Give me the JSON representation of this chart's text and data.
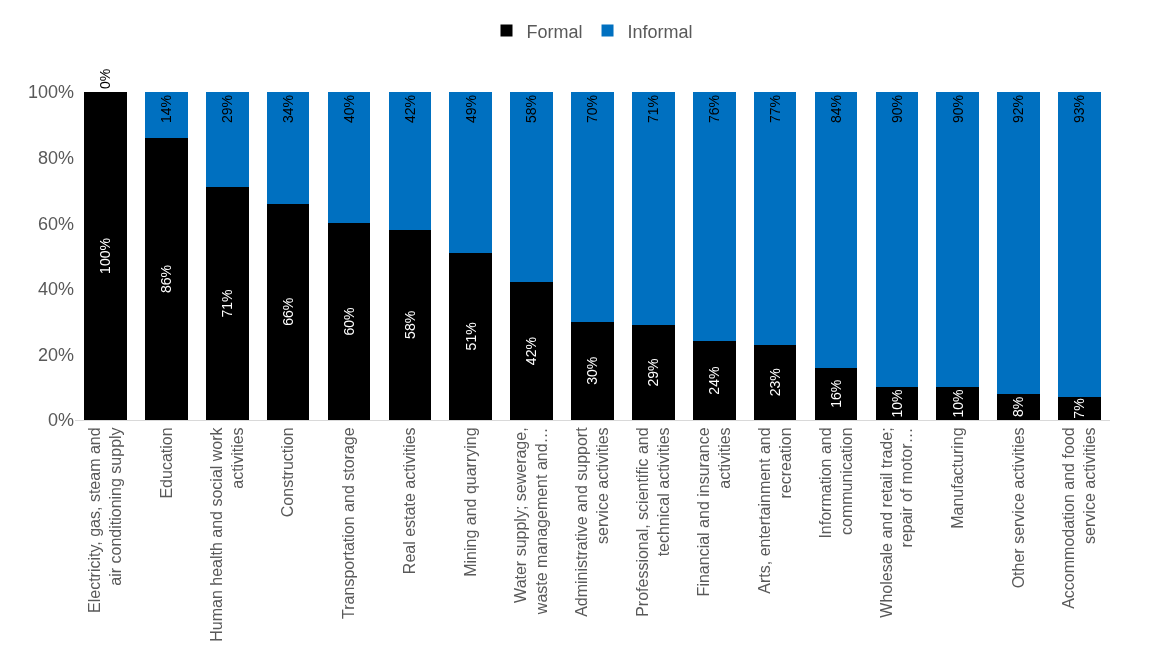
{
  "chart_data": {
    "type": "bar",
    "stacked": true,
    "legend": "top",
    "categories": [
      "Electricity, gas, steam and air conditioning supply",
      "Education",
      "Human health and social work activities",
      "Construction",
      "Transportation and storage",
      "Real estate activities",
      "Mining and quarrying",
      "Water supply; sewerage, waste management and…",
      "Administrative and support service activities",
      "Professional, scientific and technical activities",
      "Financial and insurance activities",
      "Arts, entertainment and recreation",
      "Information and communication",
      "Wholesale and retail trade; repair of motor…",
      "Manufacturing",
      "Other service activities",
      "Accommodation and food service activities"
    ],
    "series": [
      {
        "name": "Formal",
        "color": "#000000",
        "values": [
          100,
          86,
          71,
          66,
          60,
          58,
          51,
          42,
          30,
          29,
          24,
          23,
          16,
          10,
          10,
          8,
          7
        ],
        "value_labels": [
          "100%",
          "86%",
          "71%",
          "66%",
          "60%",
          "58%",
          "51%",
          "42%",
          "30%",
          "29%",
          "24%",
          "23%",
          "16%",
          "10%",
          "10%",
          "8%",
          "7%"
        ]
      },
      {
        "name": "Informal",
        "color": "#0070c0",
        "values": [
          0,
          14,
          29,
          34,
          40,
          42,
          49,
          58,
          70,
          71,
          76,
          77,
          84,
          90,
          90,
          92,
          93
        ],
        "value_labels": [
          "0%",
          "14%",
          "29%",
          "34%",
          "40%",
          "42%",
          "49%",
          "58%",
          "70%",
          "71%",
          "76%",
          "77%",
          "84%",
          "90%",
          "90%",
          "92%",
          "93%"
        ]
      }
    ],
    "ylim": [
      0,
      100
    ],
    "yticks": [
      {
        "value": 0,
        "label": "0%"
      },
      {
        "value": 20,
        "label": "20%"
      },
      {
        "value": 40,
        "label": "40%"
      },
      {
        "value": 60,
        "label": "60%"
      },
      {
        "value": 80,
        "label": "80%"
      },
      {
        "value": 100,
        "label": "100%"
      }
    ]
  }
}
